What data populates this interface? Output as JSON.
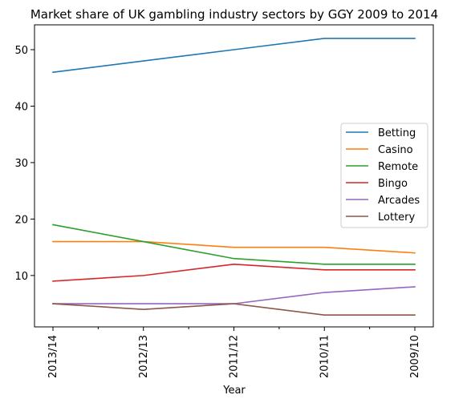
{
  "chart_data": {
    "type": "line",
    "title": "Market share of UK gambling industry sectors by GGY 2009 to 2014",
    "xlabel": "Year",
    "ylabel": "",
    "categories": [
      "2013/14",
      "2012/13",
      "2011/12",
      "2010/11",
      "2009/10"
    ],
    "ylim": [
      0.9,
      54.4
    ],
    "yticks": [
      10,
      20,
      30,
      40,
      50
    ],
    "grid": false,
    "legend_position": "center-right",
    "series": [
      {
        "name": "Betting",
        "color": "#1f77b4",
        "values": [
          46,
          48,
          50,
          52,
          52
        ]
      },
      {
        "name": "Casino",
        "color": "#ff7f0e",
        "values": [
          16,
          16,
          15,
          15,
          14
        ]
      },
      {
        "name": "Remote",
        "color": "#2ca02c",
        "values": [
          19,
          16,
          13,
          12,
          12
        ]
      },
      {
        "name": "Bingo",
        "color": "#d62728",
        "values": [
          9,
          10,
          12,
          11,
          11
        ]
      },
      {
        "name": "Arcades",
        "color": "#9467bd",
        "values": [
          5,
          5,
          5,
          7,
          8
        ]
      },
      {
        "name": "Lottery",
        "color": "#8c564b",
        "values": [
          5,
          4,
          5,
          3,
          3
        ]
      }
    ]
  }
}
